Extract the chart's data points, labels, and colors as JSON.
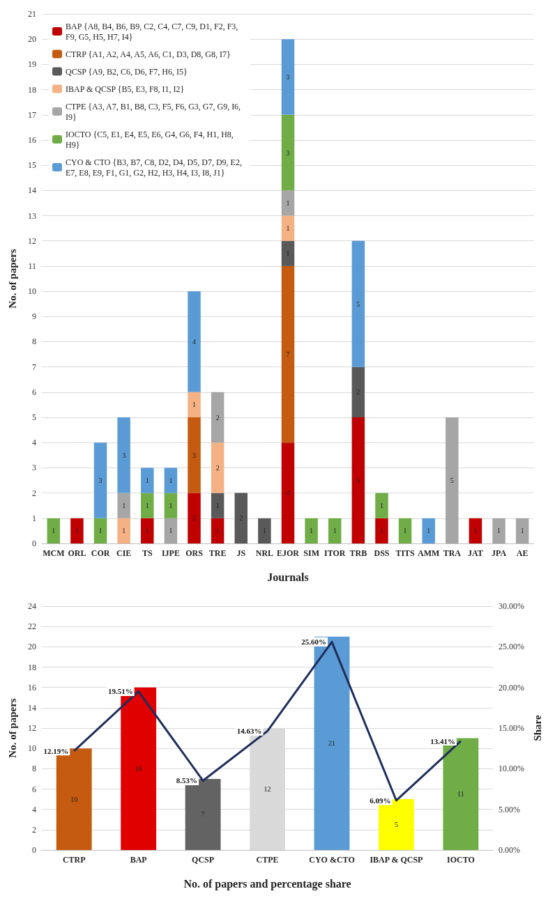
{
  "chart_data": [
    {
      "type": "bar",
      "stacked": true,
      "xlabel": "Journals",
      "ylabel": "No. of papers",
      "categories": [
        "MCM",
        "ORL",
        "COR",
        "CIE",
        "TS",
        "IJPE",
        "ORS",
        "TRE",
        "JS",
        "NRL",
        "EJOR",
        "SIM",
        "ITOR",
        "TRB",
        "DSS",
        "TITS",
        "AMM",
        "TRA",
        "JAT",
        "JPA",
        "AE"
      ],
      "ylim": [
        0,
        21
      ],
      "yticks": [
        0,
        1,
        2,
        3,
        4,
        5,
        6,
        7,
        8,
        9,
        10,
        11,
        12,
        13,
        14,
        15,
        16,
        17,
        18,
        19,
        20,
        21
      ],
      "grid": "y",
      "legend": "top left",
      "data_labels": true,
      "series": [
        {
          "name": "BAP {A8, B4, B6, B9, C2, C4, C7, C9, D1, F2, F3, F9, G5, H5, H7, I4}",
          "color": "#c00000",
          "values": [
            null,
            1,
            null,
            null,
            1,
            null,
            2,
            1,
            null,
            null,
            4,
            null,
            null,
            5,
            1,
            null,
            null,
            null,
            1,
            null,
            null
          ]
        },
        {
          "name": "CTRP {A1, A2, A4, A5, A6, C1, D3, D8, G8, I7}",
          "color": "#c55a11",
          "values": [
            null,
            null,
            null,
            null,
            null,
            null,
            3,
            null,
            null,
            null,
            7,
            null,
            null,
            null,
            null,
            null,
            null,
            null,
            null,
            null,
            null
          ]
        },
        {
          "name": "QCSP {A9, B2, C6, D6, F7, H6, I5}",
          "color": "#595959",
          "values": [
            null,
            null,
            null,
            null,
            null,
            null,
            null,
            1,
            2,
            1,
            1,
            null,
            null,
            2,
            null,
            null,
            null,
            null,
            null,
            null,
            null
          ]
        },
        {
          "name": "IBAP & QCSP {B5, E3, F8, I1, I2}",
          "color": "#f4b183",
          "values": [
            null,
            null,
            null,
            1,
            null,
            null,
            1,
            2,
            null,
            null,
            1,
            null,
            null,
            null,
            null,
            null,
            null,
            null,
            null,
            null,
            null
          ]
        },
        {
          "name": "CTPE {A3, A7, B1, B8, C3, F5, F6, G3, G7, G9, I6, I9}",
          "color": "#a6a6a6",
          "values": [
            null,
            null,
            null,
            1,
            null,
            1,
            null,
            2,
            null,
            null,
            1,
            null,
            null,
            null,
            null,
            null,
            null,
            5,
            null,
            1,
            1
          ]
        },
        {
          "name": "IOCTO {C5, E1, E4, E5, E6, G4, G6, F4, H1, H8, H9}",
          "color": "#70ad47",
          "values": [
            1,
            null,
            1,
            null,
            1,
            1,
            null,
            null,
            null,
            null,
            3,
            1,
            1,
            null,
            1,
            1,
            null,
            null,
            null,
            null,
            null
          ]
        },
        {
          "name": "CYO & CTO {B3, B7, C8, D2, D4, D5, D7, D9, E2, E7, E8, E9, F1, G1, G2, H2, H3, H4, I3, I8, J1}",
          "color": "#5b9bd5",
          "values": [
            null,
            null,
            3,
            3,
            1,
            1,
            4,
            null,
            null,
            null,
            3,
            null,
            null,
            5,
            null,
            null,
            1,
            null,
            null,
            null,
            null
          ]
        }
      ]
    },
    {
      "type": "bar",
      "xlabel": "No. of papers and percentage share",
      "ylabel": "No. of papers",
      "y2label": "Share",
      "categories": [
        "CTRP",
        "BAP",
        "QCSP",
        "CTPE",
        "CYO &CTO",
        "IBAP & QCSP",
        "IOCTO"
      ],
      "ylim": [
        0,
        24
      ],
      "yticks": [
        0,
        2,
        4,
        6,
        8,
        10,
        12,
        14,
        16,
        18,
        20,
        22,
        24
      ],
      "y2lim": [
        0,
        30
      ],
      "y2ticks": [
        {
          "value": 0,
          "label": "0.00%"
        },
        {
          "value": 5,
          "label": "5.00%"
        },
        {
          "value": 10,
          "label": "10.00%"
        },
        {
          "value": 15,
          "label": "15.00%"
        },
        {
          "value": 20,
          "label": "20.00%"
        },
        {
          "value": 25,
          "label": "25.00%"
        },
        {
          "value": 30,
          "label": "30.00%"
        }
      ],
      "grid": "y",
      "series": [
        {
          "type": "bar",
          "colors": [
            "#c55a11",
            "#e00000",
            "#636363",
            "#d9d9d9",
            "#5b9bd5",
            "#ffff00",
            "#70ad47"
          ],
          "values": [
            10,
            16,
            7,
            12,
            21,
            5,
            11
          ],
          "value_labels": [
            "10",
            "16",
            "7",
            "12",
            "21",
            "5",
            "11"
          ]
        },
        {
          "type": "line",
          "axis": "y2",
          "color": "#1f2d5a",
          "marker": "none",
          "values": [
            12.19,
            19.51,
            8.53,
            14.63,
            25.6,
            6.09,
            13.41
          ],
          "value_labels": [
            "12.19%",
            "19.51%",
            "8.53%",
            "14.63%",
            "25.60%",
            "6.09%",
            "13.41%"
          ]
        }
      ]
    }
  ]
}
